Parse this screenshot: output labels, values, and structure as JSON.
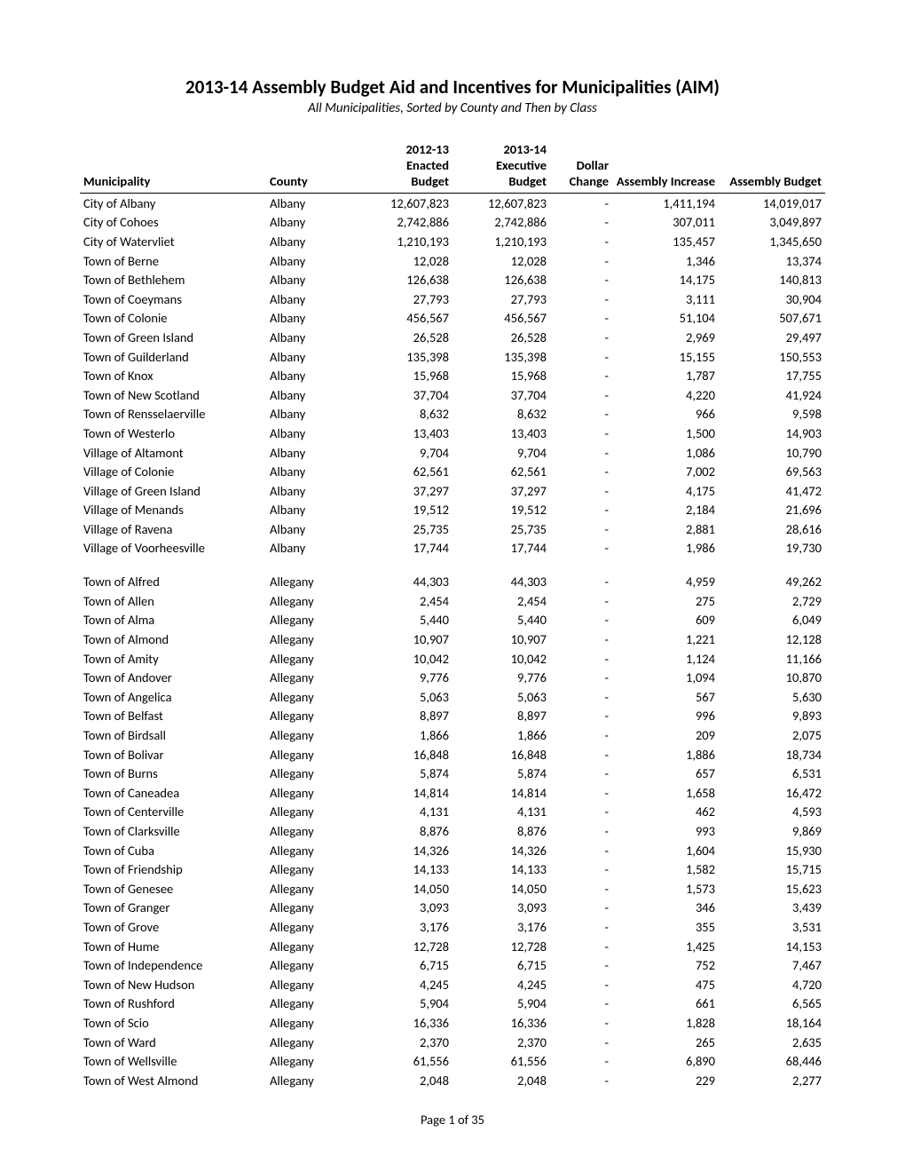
{
  "title": "2013-14 Assembly Budget Aid and Incentives for Municipalities (AIM)",
  "subtitle": "All Municipalities, Sorted by County and Then by Class",
  "columns": {
    "municipality": "Municipality",
    "county": "County",
    "budget_2012_13": "2012-13\nEnacted\nBudget",
    "budget_2013_14": "2013-14\nExecutive\nBudget",
    "dollar_change": "Dollar\nChange",
    "assembly_increase": "Assembly Increase",
    "assembly_budget": "Assembly Budget"
  },
  "footer": "Page 1 of 35",
  "rows": [
    {
      "m": "City of Albany",
      "c": "Albany",
      "b12": "12,607,823",
      "b13": "12,607,823",
      "chg": "-",
      "inc": "1,411,194",
      "asm": "14,019,017"
    },
    {
      "m": "City of Cohoes",
      "c": "Albany",
      "b12": "2,742,886",
      "b13": "2,742,886",
      "chg": "-",
      "inc": "307,011",
      "asm": "3,049,897"
    },
    {
      "m": "City of Watervliet",
      "c": "Albany",
      "b12": "1,210,193",
      "b13": "1,210,193",
      "chg": "-",
      "inc": "135,457",
      "asm": "1,345,650"
    },
    {
      "m": "Town of Berne",
      "c": "Albany",
      "b12": "12,028",
      "b13": "12,028",
      "chg": "-",
      "inc": "1,346",
      "asm": "13,374"
    },
    {
      "m": "Town of Bethlehem",
      "c": "Albany",
      "b12": "126,638",
      "b13": "126,638",
      "chg": "-",
      "inc": "14,175",
      "asm": "140,813"
    },
    {
      "m": "Town of Coeymans",
      "c": "Albany",
      "b12": "27,793",
      "b13": "27,793",
      "chg": "-",
      "inc": "3,111",
      "asm": "30,904"
    },
    {
      "m": "Town of Colonie",
      "c": "Albany",
      "b12": "456,567",
      "b13": "456,567",
      "chg": "-",
      "inc": "51,104",
      "asm": "507,671"
    },
    {
      "m": "Town of Green Island",
      "c": "Albany",
      "b12": "26,528",
      "b13": "26,528",
      "chg": "-",
      "inc": "2,969",
      "asm": "29,497"
    },
    {
      "m": "Town of Guilderland",
      "c": "Albany",
      "b12": "135,398",
      "b13": "135,398",
      "chg": "-",
      "inc": "15,155",
      "asm": "150,553"
    },
    {
      "m": "Town of Knox",
      "c": "Albany",
      "b12": "15,968",
      "b13": "15,968",
      "chg": "-",
      "inc": "1,787",
      "asm": "17,755"
    },
    {
      "m": "Town of New Scotland",
      "c": "Albany",
      "b12": "37,704",
      "b13": "37,704",
      "chg": "-",
      "inc": "4,220",
      "asm": "41,924"
    },
    {
      "m": "Town of Rensselaerville",
      "c": "Albany",
      "b12": "8,632",
      "b13": "8,632",
      "chg": "-",
      "inc": "966",
      "asm": "9,598"
    },
    {
      "m": "Town of Westerlo",
      "c": "Albany",
      "b12": "13,403",
      "b13": "13,403",
      "chg": "-",
      "inc": "1,500",
      "asm": "14,903"
    },
    {
      "m": "Village of Altamont",
      "c": "Albany",
      "b12": "9,704",
      "b13": "9,704",
      "chg": "-",
      "inc": "1,086",
      "asm": "10,790"
    },
    {
      "m": "Village of Colonie",
      "c": "Albany",
      "b12": "62,561",
      "b13": "62,561",
      "chg": "-",
      "inc": "7,002",
      "asm": "69,563"
    },
    {
      "m": "Village of Green Island",
      "c": "Albany",
      "b12": "37,297",
      "b13": "37,297",
      "chg": "-",
      "inc": "4,175",
      "asm": "41,472"
    },
    {
      "m": "Village of Menands",
      "c": "Albany",
      "b12": "19,512",
      "b13": "19,512",
      "chg": "-",
      "inc": "2,184",
      "asm": "21,696"
    },
    {
      "m": "Village of Ravena",
      "c": "Albany",
      "b12": "25,735",
      "b13": "25,735",
      "chg": "-",
      "inc": "2,881",
      "asm": "28,616"
    },
    {
      "m": "Village of Voorheesville",
      "c": "Albany",
      "b12": "17,744",
      "b13": "17,744",
      "chg": "-",
      "inc": "1,986",
      "asm": "19,730"
    },
    {
      "gap": true,
      "m": "Town of Alfred",
      "c": "Allegany",
      "b12": "44,303",
      "b13": "44,303",
      "chg": "-",
      "inc": "4,959",
      "asm": "49,262"
    },
    {
      "m": "Town of Allen",
      "c": "Allegany",
      "b12": "2,454",
      "b13": "2,454",
      "chg": "-",
      "inc": "275",
      "asm": "2,729"
    },
    {
      "m": "Town of Alma",
      "c": "Allegany",
      "b12": "5,440",
      "b13": "5,440",
      "chg": "-",
      "inc": "609",
      "asm": "6,049"
    },
    {
      "m": "Town of Almond",
      "c": "Allegany",
      "b12": "10,907",
      "b13": "10,907",
      "chg": "-",
      "inc": "1,221",
      "asm": "12,128"
    },
    {
      "m": "Town of Amity",
      "c": "Allegany",
      "b12": "10,042",
      "b13": "10,042",
      "chg": "-",
      "inc": "1,124",
      "asm": "11,166"
    },
    {
      "m": "Town of Andover",
      "c": "Allegany",
      "b12": "9,776",
      "b13": "9,776",
      "chg": "-",
      "inc": "1,094",
      "asm": "10,870"
    },
    {
      "m": "Town of Angelica",
      "c": "Allegany",
      "b12": "5,063",
      "b13": "5,063",
      "chg": "-",
      "inc": "567",
      "asm": "5,630"
    },
    {
      "m": "Town of Belfast",
      "c": "Allegany",
      "b12": "8,897",
      "b13": "8,897",
      "chg": "-",
      "inc": "996",
      "asm": "9,893"
    },
    {
      "m": "Town of Birdsall",
      "c": "Allegany",
      "b12": "1,866",
      "b13": "1,866",
      "chg": "-",
      "inc": "209",
      "asm": "2,075"
    },
    {
      "m": "Town of Bolivar",
      "c": "Allegany",
      "b12": "16,848",
      "b13": "16,848",
      "chg": "-",
      "inc": "1,886",
      "asm": "18,734"
    },
    {
      "m": "Town of Burns",
      "c": "Allegany",
      "b12": "5,874",
      "b13": "5,874",
      "chg": "-",
      "inc": "657",
      "asm": "6,531"
    },
    {
      "m": "Town of Caneadea",
      "c": "Allegany",
      "b12": "14,814",
      "b13": "14,814",
      "chg": "-",
      "inc": "1,658",
      "asm": "16,472"
    },
    {
      "m": "Town of Centerville",
      "c": "Allegany",
      "b12": "4,131",
      "b13": "4,131",
      "chg": "-",
      "inc": "462",
      "asm": "4,593"
    },
    {
      "m": "Town of Clarksville",
      "c": "Allegany",
      "b12": "8,876",
      "b13": "8,876",
      "chg": "-",
      "inc": "993",
      "asm": "9,869"
    },
    {
      "m": "Town of Cuba",
      "c": "Allegany",
      "b12": "14,326",
      "b13": "14,326",
      "chg": "-",
      "inc": "1,604",
      "asm": "15,930"
    },
    {
      "m": "Town of Friendship",
      "c": "Allegany",
      "b12": "14,133",
      "b13": "14,133",
      "chg": "-",
      "inc": "1,582",
      "asm": "15,715"
    },
    {
      "m": "Town of Genesee",
      "c": "Allegany",
      "b12": "14,050",
      "b13": "14,050",
      "chg": "-",
      "inc": "1,573",
      "asm": "15,623"
    },
    {
      "m": "Town of Granger",
      "c": "Allegany",
      "b12": "3,093",
      "b13": "3,093",
      "chg": "-",
      "inc": "346",
      "asm": "3,439"
    },
    {
      "m": "Town of Grove",
      "c": "Allegany",
      "b12": "3,176",
      "b13": "3,176",
      "chg": "-",
      "inc": "355",
      "asm": "3,531"
    },
    {
      "m": "Town of Hume",
      "c": "Allegany",
      "b12": "12,728",
      "b13": "12,728",
      "chg": "-",
      "inc": "1,425",
      "asm": "14,153"
    },
    {
      "m": "Town of Independence",
      "c": "Allegany",
      "b12": "6,715",
      "b13": "6,715",
      "chg": "-",
      "inc": "752",
      "asm": "7,467"
    },
    {
      "m": "Town of New Hudson",
      "c": "Allegany",
      "b12": "4,245",
      "b13": "4,245",
      "chg": "-",
      "inc": "475",
      "asm": "4,720"
    },
    {
      "m": "Town of Rushford",
      "c": "Allegany",
      "b12": "5,904",
      "b13": "5,904",
      "chg": "-",
      "inc": "661",
      "asm": "6,565"
    },
    {
      "m": "Town of Scio",
      "c": "Allegany",
      "b12": "16,336",
      "b13": "16,336",
      "chg": "-",
      "inc": "1,828",
      "asm": "18,164"
    },
    {
      "m": "Town of Ward",
      "c": "Allegany",
      "b12": "2,370",
      "b13": "2,370",
      "chg": "-",
      "inc": "265",
      "asm": "2,635"
    },
    {
      "m": "Town of Wellsville",
      "c": "Allegany",
      "b12": "61,556",
      "b13": "61,556",
      "chg": "-",
      "inc": "6,890",
      "asm": "68,446"
    },
    {
      "m": "Town of West Almond",
      "c": "Allegany",
      "b12": "2,048",
      "b13": "2,048",
      "chg": "-",
      "inc": "229",
      "asm": "2,277"
    }
  ]
}
